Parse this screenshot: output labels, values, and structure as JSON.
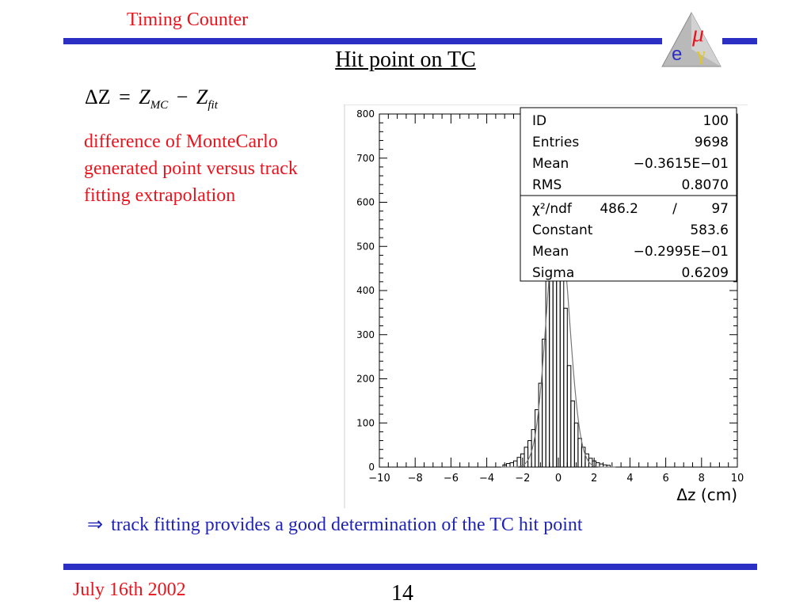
{
  "header": {
    "title": "Timing Counter"
  },
  "slide": {
    "title": "Hit point on TC"
  },
  "formula": {
    "delta": "ΔZ",
    "eq": "=",
    "zmc": "Z",
    "mc": "MC",
    "minus": "−",
    "zfit": "Z",
    "fit": "fit"
  },
  "description": {
    "line1": "difference of MonteCarlo",
    "line2": "generated point versus track",
    "line3": "fitting extrapolation"
  },
  "conclusion": {
    "arrow": "⇒",
    "text": "track fitting provides a good determination of the TC hit point"
  },
  "footer": {
    "date": "July 16th 2002",
    "page": "14"
  },
  "logo": {
    "mu": "μ",
    "e": "e",
    "gamma": "γ"
  },
  "colors": {
    "accent_red": "#e8141e",
    "bar_blue": "#2b2fc4",
    "text_blue": "#1f23b5"
  },
  "stats_box": [
    {
      "label": "ID",
      "value": "100"
    },
    {
      "label": "Entries",
      "value": "9698"
    },
    {
      "label": "Mean",
      "value": "−0.3615E−01"
    },
    {
      "label": "RMS",
      "value": "0.8070"
    }
  ],
  "fit_box": {
    "chi2_label": "χ²/ndf",
    "chi2_value": "486.2",
    "slash": "/",
    "ndf_value": "97",
    "rows": [
      {
        "label": "Constant",
        "value": "583.6"
      },
      {
        "label": "Mean",
        "value": "−0.2995E−01"
      },
      {
        "label": "Sigma",
        "value": "0.6209"
      }
    ]
  },
  "chart_data": {
    "type": "histogram",
    "title": "",
    "xlabel": "Δz (cm)",
    "ylabel": "",
    "xlim": [
      -10,
      10
    ],
    "ylim": [
      0,
      800
    ],
    "x_ticks": [
      "−10",
      "−8",
      "−6",
      "−4",
      "−2",
      "0",
      "2",
      "4",
      "6",
      "8",
      "10"
    ],
    "x_tick_values": [
      -10,
      -8,
      -6,
      -4,
      -2,
      0,
      2,
      4,
      6,
      8,
      10
    ],
    "y_ticks": [
      "0",
      "100",
      "200",
      "300",
      "400",
      "500",
      "600",
      "700",
      "800"
    ],
    "y_tick_values": [
      0,
      100,
      200,
      300,
      400,
      500,
      600,
      700,
      800
    ],
    "histogram": {
      "bin_width": 0.2,
      "x": [
        -3.0,
        -2.8,
        -2.6,
        -2.4,
        -2.2,
        -2.0,
        -1.8,
        -1.6,
        -1.4,
        -1.2,
        -1.0,
        -0.8,
        -0.6,
        -0.4,
        -0.2,
        0.0,
        0.2,
        0.4,
        0.6,
        0.8,
        1.0,
        1.2,
        1.4,
        1.6,
        1.8,
        2.0,
        2.2,
        2.4,
        2.6,
        2.8
      ],
      "counts": [
        5,
        8,
        10,
        14,
        22,
        30,
        45,
        60,
        85,
        130,
        190,
        290,
        430,
        600,
        730,
        690,
        530,
        360,
        230,
        150,
        100,
        65,
        45,
        30,
        20,
        14,
        10,
        7,
        5,
        4
      ]
    },
    "fit": {
      "type": "gaussian",
      "constant": 583.6,
      "mean": -0.02995,
      "sigma": 0.6209
    },
    "grid": false,
    "legend": "top-right"
  }
}
